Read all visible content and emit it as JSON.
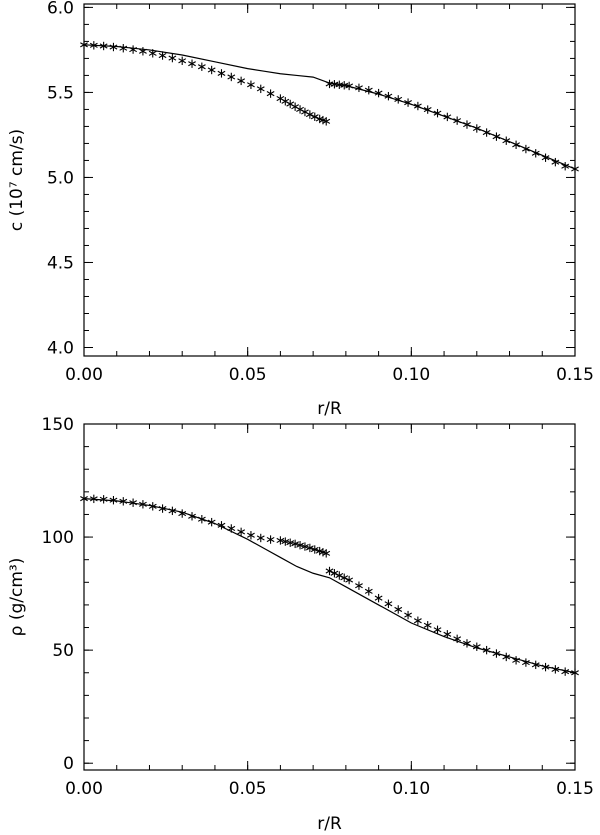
{
  "chart_data": [
    {
      "type": "scatter",
      "title": "",
      "xlabel": "r/R",
      "ylabel": "c (10⁷ cm/s)",
      "xlim": [
        0.0,
        0.15
      ],
      "ylim": [
        3.95,
        6.02
      ],
      "xticks": [
        0.0,
        0.05,
        0.1,
        0.15
      ],
      "xtick_labels": [
        "0.00",
        "0.05",
        "0.10",
        "0.15"
      ],
      "yticks": [
        4.0,
        4.5,
        5.0,
        5.5,
        6.0
      ],
      "ytick_labels": [
        "4.0",
        "4.5",
        "5.0",
        "5.5",
        "6.0"
      ],
      "grid": false,
      "legend": "none",
      "series": [
        {
          "style": "line",
          "x": [
            0.0,
            0.01,
            0.02,
            0.03,
            0.04,
            0.05,
            0.055,
            0.06,
            0.065,
            0.07,
            0.075,
            0.08,
            0.09,
            0.1,
            0.11,
            0.12,
            0.13,
            0.14,
            0.15
          ],
          "y": [
            5.78,
            5.77,
            5.75,
            5.72,
            5.68,
            5.64,
            5.625,
            5.61,
            5.6,
            5.59,
            5.555,
            5.54,
            5.49,
            5.43,
            5.36,
            5.29,
            5.21,
            5.13,
            5.05
          ]
        },
        {
          "style": "star-markers",
          "x": [
            0.0,
            0.003,
            0.006,
            0.009,
            0.012,
            0.015,
            0.018,
            0.021,
            0.024,
            0.027,
            0.03,
            0.033,
            0.036,
            0.039,
            0.042,
            0.045,
            0.048,
            0.051,
            0.054,
            0.057,
            0.06,
            0.0615,
            0.063,
            0.0645,
            0.066,
            0.0675,
            0.069,
            0.0705,
            0.072,
            0.073,
            0.074
          ],
          "y": [
            5.78,
            5.777,
            5.773,
            5.767,
            5.76,
            5.752,
            5.742,
            5.73,
            5.717,
            5.702,
            5.686,
            5.669,
            5.651,
            5.632,
            5.612,
            5.591,
            5.568,
            5.545,
            5.521,
            5.493,
            5.464,
            5.448,
            5.432,
            5.416,
            5.4,
            5.385,
            5.37,
            5.357,
            5.344,
            5.337,
            5.33
          ]
        },
        {
          "style": "star-markers",
          "x": [
            0.075,
            0.0765,
            0.078,
            0.0795,
            0.081,
            0.084,
            0.087,
            0.09,
            0.093,
            0.096,
            0.099,
            0.102,
            0.105,
            0.108,
            0.111,
            0.114,
            0.117,
            0.12,
            0.123,
            0.126,
            0.129,
            0.132,
            0.135,
            0.138,
            0.141,
            0.144,
            0.147,
            0.15
          ],
          "y": [
            5.55,
            5.548,
            5.545,
            5.542,
            5.538,
            5.527,
            5.513,
            5.496,
            5.478,
            5.459,
            5.44,
            5.42,
            5.399,
            5.378,
            5.356,
            5.334,
            5.311,
            5.288,
            5.264,
            5.24,
            5.216,
            5.192,
            5.167,
            5.142,
            5.116,
            5.09,
            5.066,
            5.05
          ]
        }
      ]
    },
    {
      "type": "scatter",
      "title": "",
      "xlabel": "r/R",
      "ylabel": "ρ (g/cm³)",
      "xlim": [
        0.0,
        0.15
      ],
      "ylim": [
        -3,
        150
      ],
      "xticks": [
        0.0,
        0.05,
        0.1,
        0.15
      ],
      "xtick_labels": [
        "0.00",
        "0.05",
        "0.10",
        "0.15"
      ],
      "yticks": [
        0,
        50,
        100,
        150
      ],
      "ytick_labels": [
        "0",
        "50",
        "100",
        "150"
      ],
      "grid": false,
      "legend": "none",
      "series": [
        {
          "style": "line",
          "x": [
            0.0,
            0.01,
            0.02,
            0.03,
            0.04,
            0.05,
            0.055,
            0.06,
            0.065,
            0.07,
            0.075,
            0.08,
            0.09,
            0.1,
            0.11,
            0.12,
            0.13,
            0.14,
            0.15
          ],
          "y": [
            117,
            116,
            114,
            111,
            106,
            99,
            95,
            91,
            87,
            84,
            82,
            78,
            70,
            62,
            56,
            51,
            47,
            43,
            40
          ]
        },
        {
          "style": "star-markers",
          "x": [
            0.0,
            0.003,
            0.006,
            0.009,
            0.012,
            0.015,
            0.018,
            0.021,
            0.024,
            0.027,
            0.03,
            0.033,
            0.036,
            0.039,
            0.042,
            0.045,
            0.048,
            0.051,
            0.054,
            0.057,
            0.06,
            0.0615,
            0.063,
            0.0645,
            0.066,
            0.0675,
            0.069,
            0.0705,
            0.072,
            0.073,
            0.074
          ],
          "y": [
            117,
            116.9,
            116.7,
            116.3,
            115.8,
            115.2,
            114.5,
            113.6,
            112.6,
            111.6,
            110.4,
            109.2,
            107.9,
            106.6,
            105.2,
            103.8,
            102.3,
            100.8,
            99.6,
            98.9,
            98.5,
            98.0,
            97.5,
            97.0,
            96.4,
            95.8,
            95.2,
            94.5,
            93.8,
            93.3,
            92.8
          ]
        },
        {
          "style": "star-markers",
          "x": [
            0.075,
            0.0765,
            0.078,
            0.0795,
            0.081,
            0.084,
            0.087,
            0.09,
            0.093,
            0.096,
            0.099,
            0.102,
            0.105,
            0.108,
            0.111,
            0.114,
            0.117,
            0.12,
            0.123,
            0.126,
            0.129,
            0.132,
            0.135,
            0.138,
            0.141,
            0.144,
            0.147,
            0.15
          ],
          "y": [
            85,
            84,
            83,
            82,
            81,
            78.5,
            76,
            73,
            70.5,
            68,
            65.5,
            63,
            61,
            59,
            57,
            55,
            53,
            51.5,
            50,
            48.5,
            47,
            45.5,
            44.5,
            43.5,
            42.5,
            41.5,
            40.5,
            40
          ]
        }
      ]
    }
  ]
}
